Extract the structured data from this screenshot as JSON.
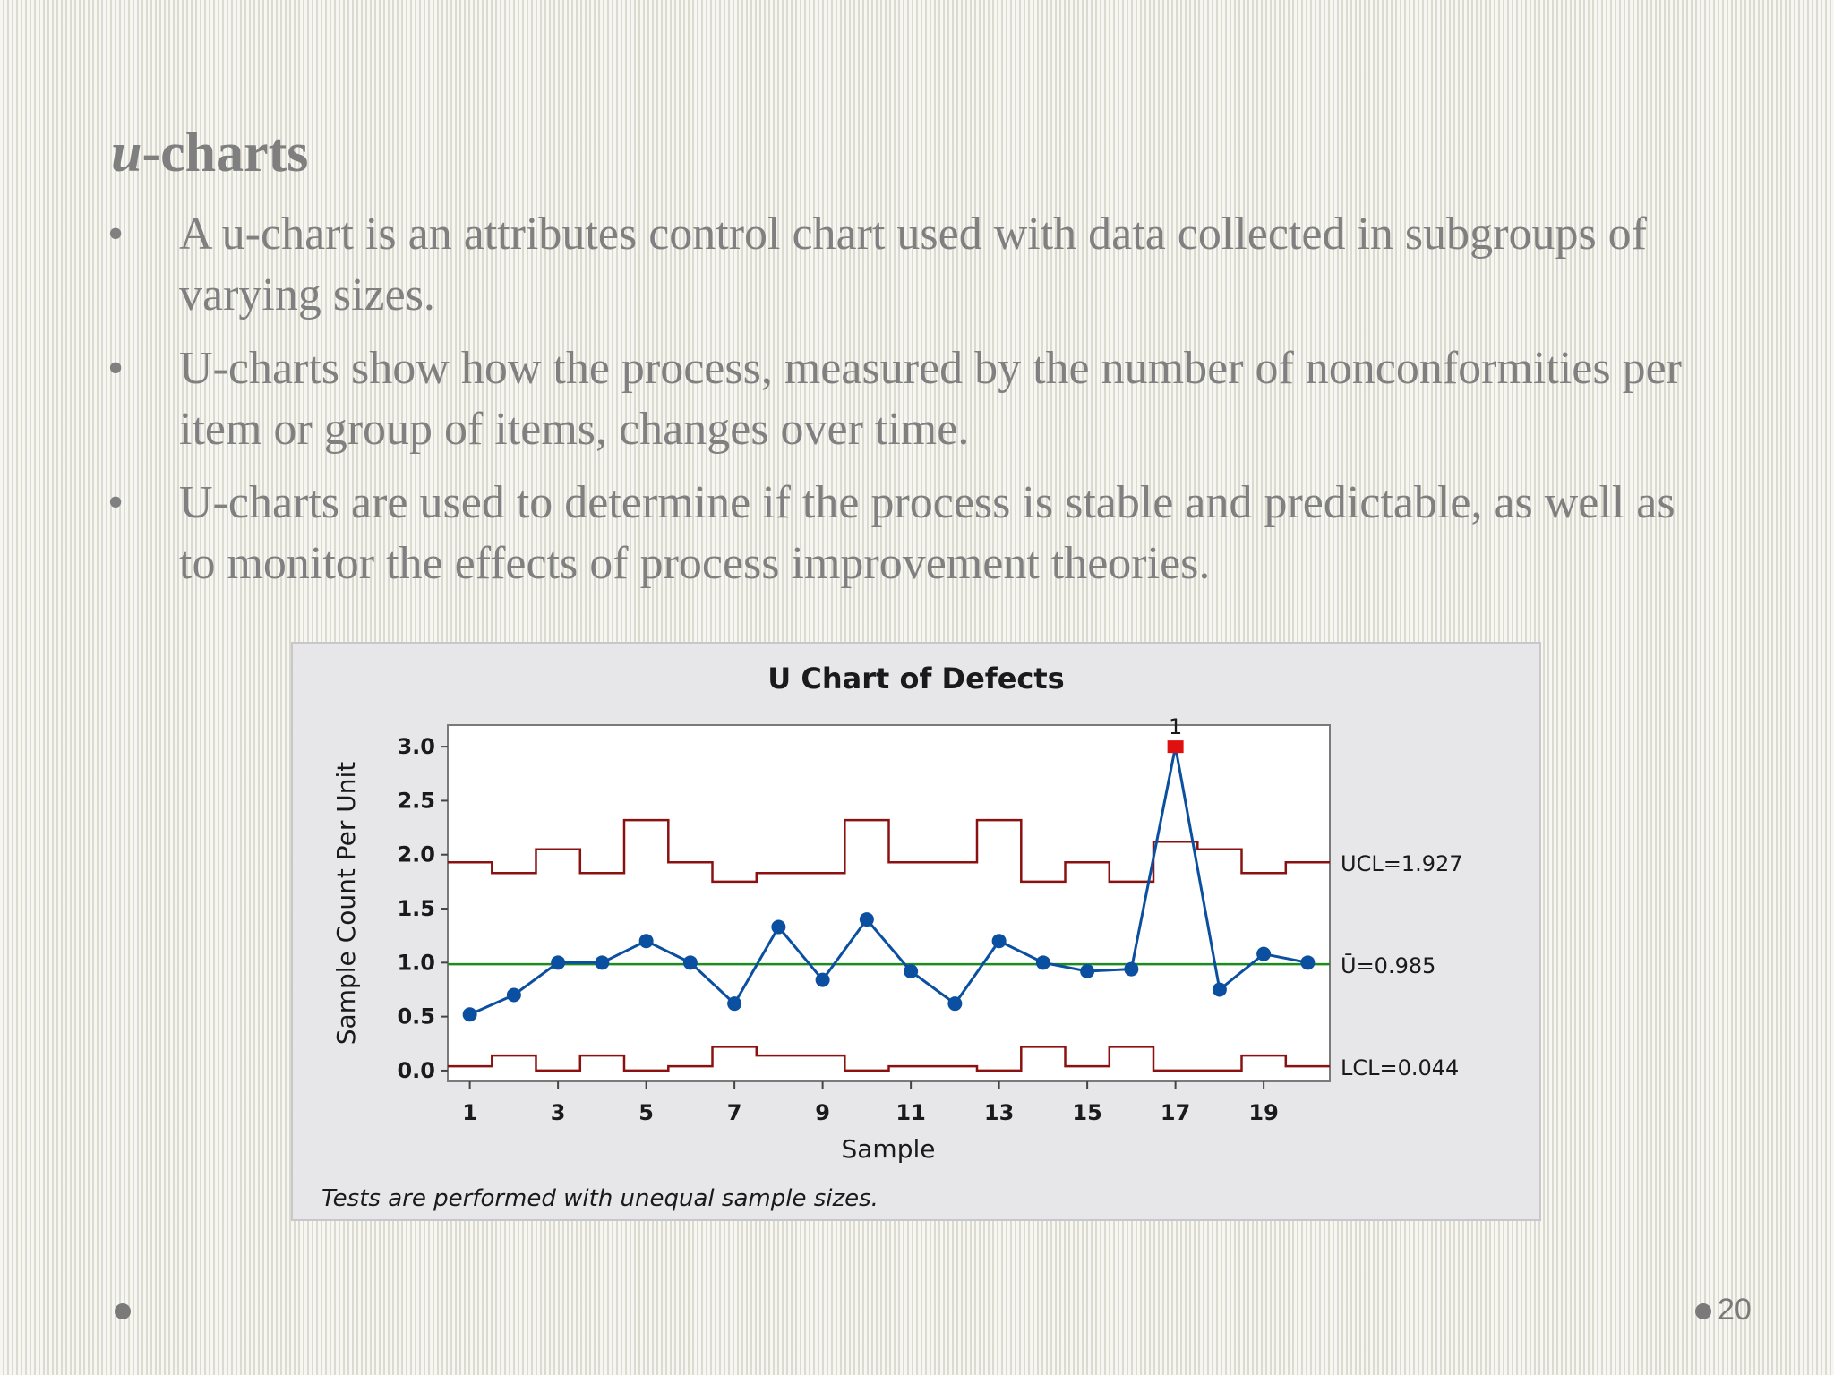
{
  "slide": {
    "title_italic": "u",
    "title_rest": "-charts",
    "bullet_symbol": "•",
    "bullets": [
      "A u-chart is an attributes control chart used with data collected in subgroups of varying sizes.",
      "U-charts show how the process, measured by the number of nonconformities per item or group of items, changes over time.",
      "U-charts are used to determine if the process is stable and predictable, as well as to monitor the effects of process improvement theories."
    ],
    "page_number": "20"
  },
  "chart_data": {
    "type": "line",
    "title": "U Chart of Defects",
    "xlabel": "Sample",
    "ylabel": "Sample Count Per Unit",
    "xlim": [
      0.5,
      20.5
    ],
    "ylim": [
      -0.1,
      3.2
    ],
    "x_ticks": [
      1,
      3,
      5,
      7,
      9,
      11,
      13,
      15,
      17,
      19
    ],
    "y_ticks": [
      {
        "value": 0.0,
        "label": "0.0"
      },
      {
        "value": 0.5,
        "label": "0.5"
      },
      {
        "value": 1.0,
        "label": "1.0"
      },
      {
        "value": 1.5,
        "label": "1.5"
      },
      {
        "value": 2.0,
        "label": "2.0"
      },
      {
        "value": 2.5,
        "label": "2.5"
      },
      {
        "value": 3.0,
        "label": "3.0"
      }
    ],
    "x": [
      1,
      2,
      3,
      4,
      5,
      6,
      7,
      8,
      9,
      10,
      11,
      12,
      13,
      14,
      15,
      16,
      17,
      18,
      19,
      20
    ],
    "series": [
      {
        "values": [
          0.52,
          0.7,
          1.0,
          1.0,
          1.2,
          1.0,
          0.62,
          1.33,
          0.84,
          1.4,
          0.92,
          0.62,
          1.2,
          1.0,
          0.92,
          0.94,
          3.0,
          0.75,
          1.08,
          1.0
        ],
        "color": "#0a4fa0"
      }
    ],
    "center_line": {
      "value": 0.985,
      "label": "Ū=0.985",
      "color": "#1f8a1f"
    },
    "ucl": {
      "values": [
        1.93,
        1.83,
        2.05,
        1.83,
        2.32,
        1.93,
        1.75,
        1.83,
        1.83,
        2.32,
        1.93,
        1.93,
        2.32,
        1.75,
        1.93,
        1.75,
        2.12,
        2.05,
        1.83,
        1.93
      ],
      "label": "UCL=1.927",
      "color": "#8b1010"
    },
    "lcl": {
      "values": [
        0.04,
        0.14,
        0.0,
        0.14,
        0.0,
        0.04,
        0.22,
        0.14,
        0.14,
        0.0,
        0.04,
        0.04,
        0.0,
        0.22,
        0.04,
        0.22,
        0.0,
        0.0,
        0.14,
        0.04
      ],
      "label": "LCL=0.044",
      "color": "#8b1010"
    },
    "out_of_control": [
      {
        "x": 17,
        "value": 3.0,
        "label": "1",
        "color": "#e01010"
      }
    ],
    "footnote": "Tests are performed with unequal sample sizes."
  }
}
